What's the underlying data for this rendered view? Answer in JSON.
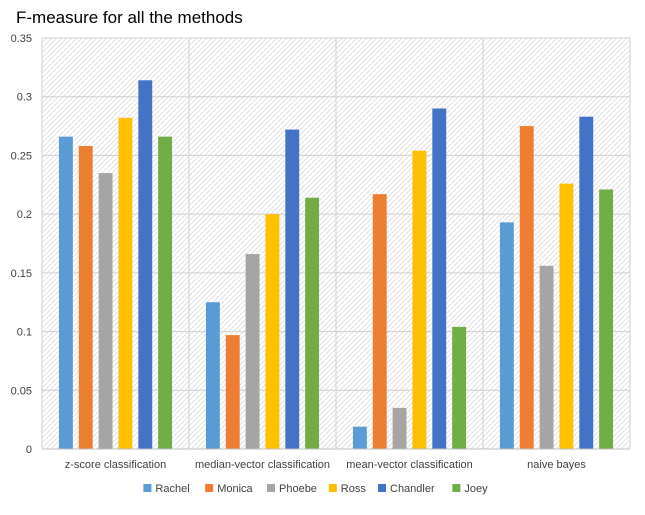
{
  "chart_data": {
    "type": "bar",
    "title": "F-measure for all the methods",
    "xlabel": "",
    "ylabel": "",
    "categories": [
      "z-score classification",
      "median-vector classification",
      "mean-vector classification",
      "naive bayes"
    ],
    "series": [
      {
        "name": "Rachel",
        "color": "#5b9bd5",
        "values": [
          0.266,
          0.125,
          0.019,
          0.193
        ]
      },
      {
        "name": "Monica",
        "color": "#ed7d31",
        "values": [
          0.258,
          0.097,
          0.217,
          0.275
        ]
      },
      {
        "name": "Phoebe",
        "color": "#a5a5a5",
        "values": [
          0.235,
          0.166,
          0.035,
          0.156
        ]
      },
      {
        "name": "Ross",
        "color": "#ffc000",
        "values": [
          0.282,
          0.2,
          0.254,
          0.226
        ]
      },
      {
        "name": "Chandler",
        "color": "#4472c4",
        "values": [
          0.314,
          0.272,
          0.29,
          0.283
        ]
      },
      {
        "name": "Joey",
        "color": "#70ad47",
        "values": [
          0.266,
          0.214,
          0.104,
          0.221
        ]
      }
    ],
    "ylim": [
      0,
      0.35
    ],
    "yticks": [
      "0",
      "0.05",
      "0.1",
      "0.15",
      "0.2",
      "0.25",
      "0.3",
      "0.35"
    ],
    "grid": true,
    "legend_position": "bottom"
  }
}
